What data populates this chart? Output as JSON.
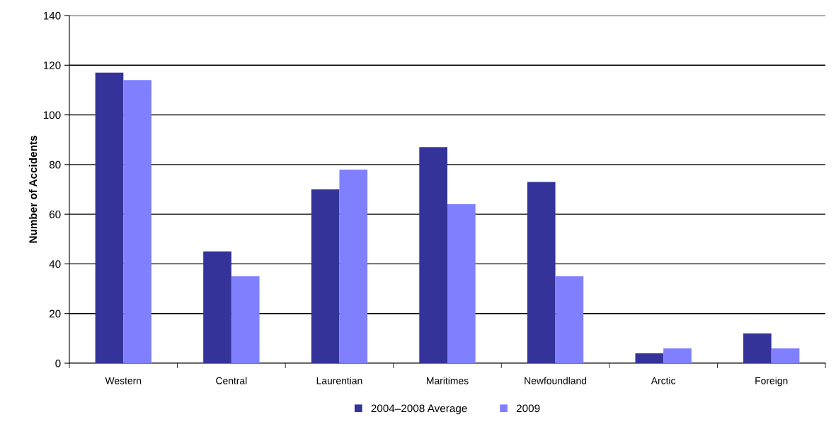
{
  "chart_data": {
    "type": "bar",
    "ylabel": "Number of Accidents",
    "categories": [
      "Western",
      "Central",
      "Laurentian",
      "Maritimes",
      "Newfoundland",
      "Arctic",
      "Foreign"
    ],
    "series": [
      {
        "name": "2004–2008 Average",
        "color": "#333399",
        "values": [
          117,
          45,
          70,
          87,
          73,
          4,
          12
        ]
      },
      {
        "name": "2009",
        "color": "#8080ff",
        "values": [
          114,
          35,
          78,
          64,
          35,
          6,
          6
        ]
      }
    ],
    "ylim": [
      0,
      140
    ],
    "yticks": [
      0,
      20,
      40,
      60,
      80,
      100,
      120,
      140
    ],
    "grid": "y",
    "legend": "bottom"
  }
}
